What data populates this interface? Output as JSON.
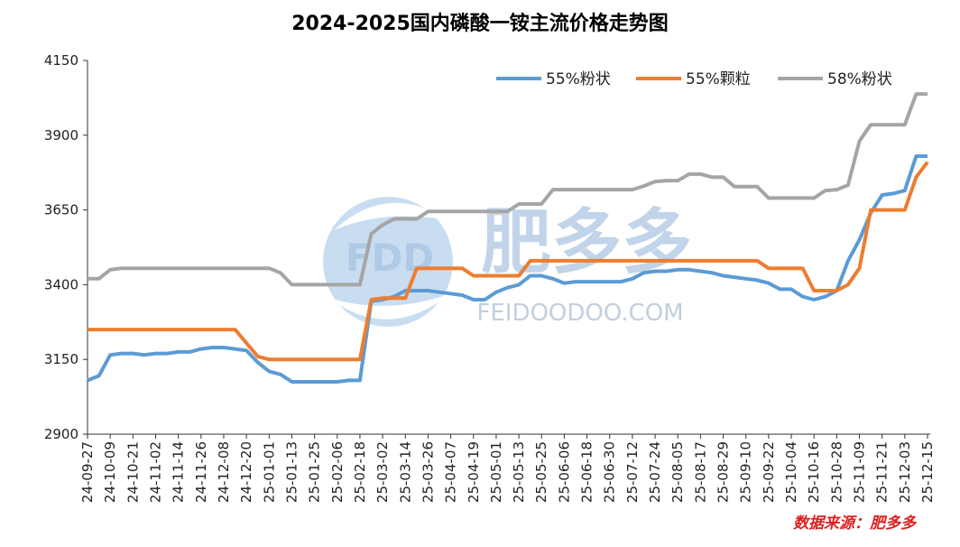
{
  "chart_data": {
    "type": "line",
    "title": "2024-2025国内磷酸一铵主流价格走势图",
    "source": "数据来源：肥多多",
    "watermark": {
      "logo": "FDD",
      "name": "肥多多",
      "site": "FEIDOODOO.COM"
    },
    "categories": [
      "24-09-27",
      null,
      "24-10-09",
      null,
      "24-10-21",
      null,
      "24-11-02",
      null,
      "24-11-14",
      null,
      "24-11-26",
      null,
      "24-12-08",
      null,
      "24-12-20",
      null,
      "25-01-01",
      null,
      "25-01-13",
      null,
      "25-01-25",
      null,
      "25-02-06",
      null,
      "25-02-18",
      null,
      "25-03-02",
      null,
      "25-03-14",
      null,
      "25-03-26",
      null,
      "25-04-07",
      null,
      "25-04-19",
      null,
      "25-05-01",
      null,
      "25-05-13",
      null,
      "25-05-25",
      null,
      "25-06-06",
      null,
      "25-06-18",
      null,
      "25-06-30",
      null,
      "25-07-12",
      null,
      "25-07-24",
      null,
      "25-08-05",
      null,
      "25-08-17",
      null,
      "25-08-29",
      null,
      "25-09-10",
      null,
      "25-09-22",
      null,
      "25-10-04",
      null,
      "25-10-16",
      null,
      "25-10-28",
      null,
      "25-11-09",
      null,
      "25-11-21",
      null,
      "25-12-03",
      null,
      "25-12-15"
    ],
    "series": [
      {
        "name": "55%粉状",
        "color": "#5b9bd5",
        "values": [
          3080,
          3095,
          3165,
          3170,
          3170,
          3165,
          3170,
          3170,
          3175,
          3175,
          3185,
          3190,
          3190,
          3185,
          3180,
          3140,
          3110,
          3100,
          3075,
          3075,
          3075,
          3075,
          3075,
          3080,
          3080,
          3345,
          3350,
          3360,
          3380,
          3380,
          3380,
          3375,
          3370,
          3365,
          3350,
          3350,
          3375,
          3390,
          3400,
          3430,
          3430,
          3420,
          3405,
          3410,
          3410,
          3410,
          3410,
          3410,
          3420,
          3440,
          3445,
          3445,
          3450,
          3450,
          3445,
          3440,
          3430,
          3425,
          3420,
          3415,
          3405,
          3385,
          3385,
          3360,
          3350,
          3360,
          3380,
          3480,
          3550,
          3640,
          3700,
          3705,
          3715,
          3830,
          3830
        ]
      },
      {
        "name": "55%颗粒",
        "color": "#ed7d31",
        "values": [
          3250,
          3250,
          3250,
          3250,
          3250,
          3250,
          3250,
          3250,
          3250,
          3250,
          3250,
          3250,
          3250,
          3250,
          3205,
          3160,
          3150,
          3150,
          3150,
          3150,
          3150,
          3150,
          3150,
          3150,
          3150,
          3350,
          3355,
          3355,
          3355,
          3455,
          3455,
          3455,
          3455,
          3455,
          3430,
          3430,
          3430,
          3430,
          3430,
          3480,
          3480,
          3480,
          3480,
          3480,
          3480,
          3480,
          3480,
          3480,
          3480,
          3480,
          3480,
          3480,
          3480,
          3480,
          3480,
          3480,
          3480,
          3480,
          3480,
          3480,
          3455,
          3455,
          3455,
          3455,
          3380,
          3380,
          3380,
          3400,
          3455,
          3650,
          3650,
          3650,
          3650,
          3760,
          3810
        ]
      },
      {
        "name": "58%粉状",
        "color": "#a5a5a5",
        "values": [
          3420,
          3420,
          3450,
          3455,
          3455,
          3455,
          3455,
          3455,
          3455,
          3455,
          3455,
          3455,
          3455,
          3455,
          3455,
          3455,
          3455,
          3440,
          3400,
          3400,
          3400,
          3400,
          3400,
          3400,
          3400,
          3570,
          3600,
          3620,
          3620,
          3620,
          3645,
          3645,
          3645,
          3645,
          3645,
          3645,
          3645,
          3645,
          3670,
          3670,
          3670,
          3718,
          3718,
          3718,
          3718,
          3718,
          3718,
          3718,
          3718,
          3730,
          3745,
          3748,
          3748,
          3770,
          3770,
          3760,
          3760,
          3728,
          3728,
          3728,
          3690,
          3690,
          3690,
          3690,
          3690,
          3715,
          3718,
          3733,
          3880,
          3935,
          3935,
          3935,
          3935,
          4038,
          4038
        ]
      }
    ],
    "ylim": [
      2900,
      4150
    ],
    "yticks": [
      2900,
      3150,
      3400,
      3650,
      3900,
      4150
    ],
    "legend": "top-right",
    "grid": false
  }
}
